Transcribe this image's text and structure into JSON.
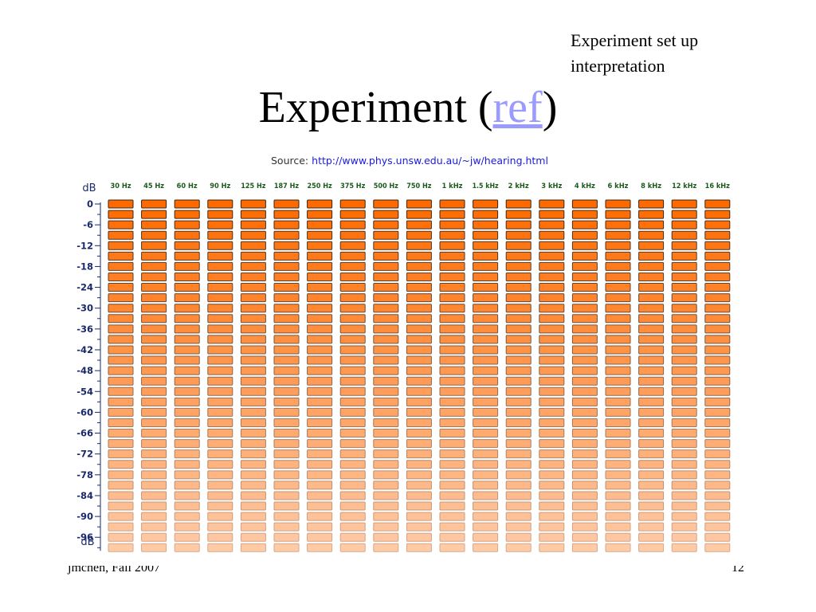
{
  "slide": {
    "note_lines": [
      "Experiment set up",
      "interpretation"
    ],
    "title_prefix": "Experiment (",
    "title_link": "ref",
    "title_suffix": ")",
    "footer_left": "jmchen, Fall 2007",
    "footer_right": "12"
  },
  "figure": {
    "source_label": "Source:",
    "source_url": "http://www.phys.unsw.edu.au/~jw/hearing.html",
    "axis_unit_top": "dB",
    "axis_unit_bottom": "dB",
    "frequencies": [
      "30 Hz",
      "45 Hz",
      "60 Hz",
      "90 Hz",
      "125 Hz",
      "187 Hz",
      "250 Hz",
      "375 Hz",
      "500 Hz",
      "750 Hz",
      "1 kHz",
      "1.5 kHz",
      "2 kHz",
      "3 kHz",
      "4 kHz",
      "6 kHz",
      "8 kHz",
      "12 kHz",
      "16 kHz"
    ],
    "db_levels": [
      0,
      -3,
      -6,
      -9,
      -12,
      -15,
      -18,
      -21,
      -24,
      -27,
      -30,
      -33,
      -36,
      -39,
      -42,
      -45,
      -48,
      -51,
      -54,
      -57,
      -60,
      -63,
      -66,
      -69,
      -72,
      -75,
      -78,
      -81,
      -84,
      -87,
      -90,
      -93,
      -96,
      -99
    ],
    "db_tick_labels": [
      "0",
      "-6",
      "-12",
      "-18",
      "-24",
      "-30",
      "-36",
      "-42",
      "-48",
      "-54",
      "-60",
      "-66",
      "-72",
      "-78",
      "-84",
      "-90",
      "-96"
    ],
    "colors": {
      "cell_top": "#ff6a00",
      "cell_bottom": "#ffcaa6",
      "cell_border_top": "#3a2410",
      "cell_border_bottom": "#d8a888",
      "freq_label": "#1c5a1c",
      "axis": "#1a2a6a"
    }
  }
}
